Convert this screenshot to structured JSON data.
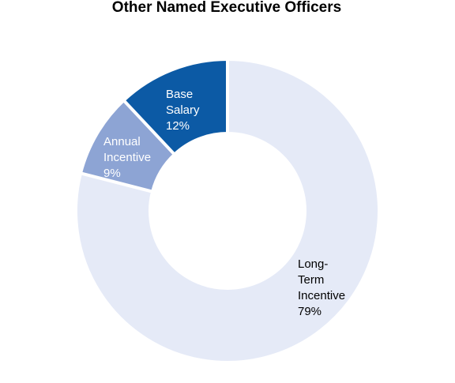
{
  "chart_data": {
    "type": "pie",
    "donut": true,
    "title": "Other Named Executive Officers",
    "slices": [
      {
        "label_lines": [
          "Long-",
          "Term",
          "Incentive"
        ],
        "value": 79,
        "value_label": "79%",
        "color": "#e5eaf7",
        "text_color": "#000000"
      },
      {
        "label_lines": [
          "Annual",
          "Incentive"
        ],
        "value": 9,
        "value_label": "9%",
        "color": "#8da4d4",
        "text_color": "#ffffff"
      },
      {
        "label_lines": [
          "Base",
          "Salary"
        ],
        "value": 12,
        "value_label": "12%",
        "color": "#0c5aa5",
        "text_color": "#ffffff"
      }
    ]
  }
}
